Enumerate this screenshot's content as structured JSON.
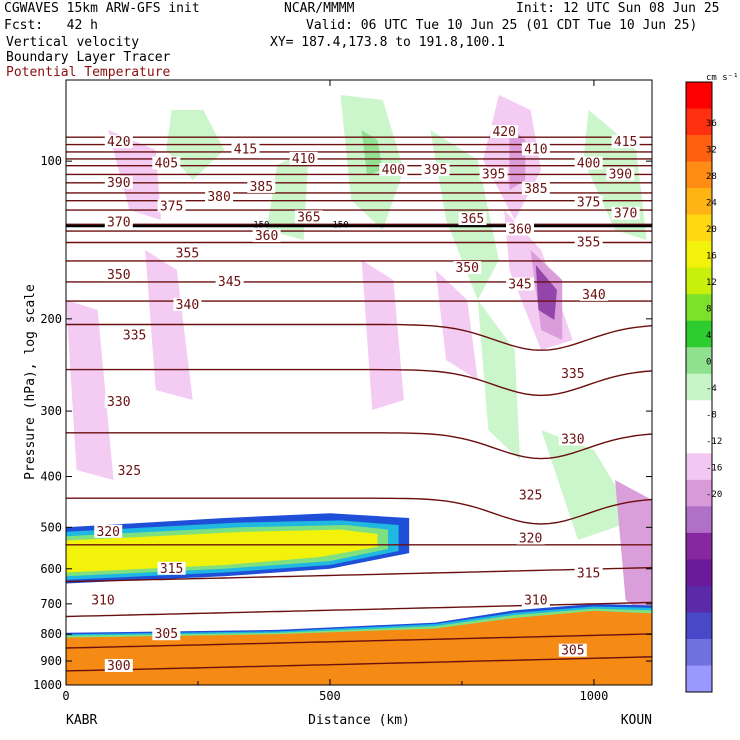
{
  "header": {
    "model": "CGWAVES 15km ARW-GFS init",
    "forecast": "Fcst:   42 h",
    "field1": "Vertical velocity",
    "field2": "Boundary Layer Tracer",
    "field3": "Potential Temperature",
    "org": "NCAR/MMMM",
    "init": "Init: 12 UTC Sun 08 Jun 25",
    "valid": "Valid: 06 UTC Tue 10 Jun 25 (01 CDT Tue 10 Jun 25)",
    "xy": "XY= 187.4,173.8 to 191.8,100.1"
  },
  "colors": {
    "theta": "#6b0f0f",
    "tracer_blue": "#1f4fd8",
    "tracer_cyan": "#1fb8e0",
    "tracer_green": "#7fe07f",
    "tracer_yellow": "#f2f20a",
    "tracer_orange": "#f58a14",
    "up_light": "#c8f5c8",
    "up_mid": "#8fe08f",
    "down_light": "#f2c8f2",
    "down_mid": "#d89ad8",
    "down_dark": "#9040a8"
  },
  "chart_data": {
    "type": "heatmap",
    "title": "Vertical velocity / Boundary Layer Tracer / Potential Temperature",
    "xlabel": "Distance (km)",
    "ylabel": "Pressure (hPa), log scale",
    "x_range": [
      0,
      1110
    ],
    "y_range": [
      1000,
      70
    ],
    "y_scale": "log",
    "x_ticks": [
      0,
      500,
      1000
    ],
    "x_tick_labels": [
      "0",
      "500",
      "1000"
    ],
    "y_ticks": [
      100,
      200,
      300,
      400,
      500,
      600,
      700,
      800,
      900,
      1000
    ],
    "y_tick_labels": [
      "100",
      "200",
      "300",
      "400",
      "500",
      "600",
      "700",
      "800",
      "900",
      "1000"
    ],
    "x_endpoint_labels": [
      "KABR",
      "KOUN"
    ],
    "colorbar": {
      "units": "cm s⁻¹",
      "levels": [
        36,
        32,
        28,
        24,
        20,
        16,
        12,
        8,
        4,
        0,
        -4,
        -8,
        -12,
        -16,
        -20
      ],
      "colors": [
        "#ff0000",
        "#ff3010",
        "#ff6010",
        "#ff8c14",
        "#ffb414",
        "#ffd814",
        "#f2f20a",
        "#c8f00a",
        "#7de02a",
        "#2fcc2f",
        "#8fe08f",
        "#c8f5c8",
        "#ffffff",
        "#ffffff",
        "#f2c8f2",
        "#d89ad8",
        "#b070c8",
        "#8828a0",
        "#6a1a9a",
        "#5a2aa8",
        "#4848c8",
        "#7070e0",
        "#9898ff"
      ],
      "label_values": [
        36,
        32,
        28,
        24,
        20,
        16,
        12,
        8,
        4,
        0,
        -4,
        -8,
        -12,
        -16,
        -20
      ]
    },
    "theta_labels": [
      {
        "value": 420,
        "x": 100,
        "p": 92
      },
      {
        "value": 415,
        "x": 340,
        "p": 95
      },
      {
        "value": 410,
        "x": 450,
        "p": 99
      },
      {
        "value": 405,
        "x": 190,
        "p": 101
      },
      {
        "value": 400,
        "x": 620,
        "p": 104
      },
      {
        "value": 395,
        "x": 700,
        "p": 104
      },
      {
        "value": 390,
        "x": 100,
        "p": 110
      },
      {
        "value": 385,
        "x": 370,
        "p": 112
      },
      {
        "value": 380,
        "x": 290,
        "p": 117
      },
      {
        "value": 375,
        "x": 200,
        "p": 122
      },
      {
        "value": 370,
        "x": 100,
        "p": 131
      },
      {
        "value": 365,
        "x": 460,
        "p": 128
      },
      {
        "value": 360,
        "x": 380,
        "p": 139
      },
      {
        "value": 355,
        "x": 230,
        "p": 150
      },
      {
        "value": 350,
        "x": 100,
        "p": 165
      },
      {
        "value": 345,
        "x": 310,
        "p": 170
      },
      {
        "value": 340,
        "x": 230,
        "p": 188
      },
      {
        "value": 335,
        "x": 130,
        "p": 215
      },
      {
        "value": 330,
        "x": 100,
        "p": 288
      },
      {
        "value": 325,
        "x": 120,
        "p": 390
      },
      {
        "value": 320,
        "x": 80,
        "p": 510
      },
      {
        "value": 315,
        "x": 200,
        "p": 600
      },
      {
        "value": 310,
        "x": 70,
        "p": 690
      },
      {
        "value": 305,
        "x": 190,
        "p": 800
      },
      {
        "value": 300,
        "x": 100,
        "p": 920
      },
      {
        "value": 420,
        "x": 830,
        "p": 88
      },
      {
        "value": 410,
        "x": 890,
        "p": 95
      },
      {
        "value": 400,
        "x": 990,
        "p": 101
      },
      {
        "value": 415,
        "x": 1060,
        "p": 92
      },
      {
        "value": 395,
        "x": 810,
        "p": 106
      },
      {
        "value": 390,
        "x": 1050,
        "p": 106
      },
      {
        "value": 385,
        "x": 890,
        "p": 113
      },
      {
        "value": 375,
        "x": 990,
        "p": 120
      },
      {
        "value": 370,
        "x": 1060,
        "p": 126
      },
      {
        "value": 365,
        "x": 770,
        "p": 129
      },
      {
        "value": 360,
        "x": 860,
        "p": 135
      },
      {
        "value": 355,
        "x": 990,
        "p": 143
      },
      {
        "value": 350,
        "x": 760,
        "p": 160
      },
      {
        "value": 345,
        "x": 860,
        "p": 172
      },
      {
        "value": 340,
        "x": 1000,
        "p": 180
      },
      {
        "value": 335,
        "x": 960,
        "p": 255
      },
      {
        "value": 330,
        "x": 960,
        "p": 340
      },
      {
        "value": 325,
        "x": 880,
        "p": 435
      },
      {
        "value": 320,
        "x": 880,
        "p": 525
      },
      {
        "value": 315,
        "x": 990,
        "p": 612
      },
      {
        "value": 310,
        "x": 890,
        "p": 690
      },
      {
        "value": 305,
        "x": 960,
        "p": 860
      }
    ],
    "tropopause_labels": [
      {
        "value": 150,
        "x": 370,
        "p": 132
      },
      {
        "value": 150,
        "x": 520,
        "p": 132
      }
    ]
  }
}
